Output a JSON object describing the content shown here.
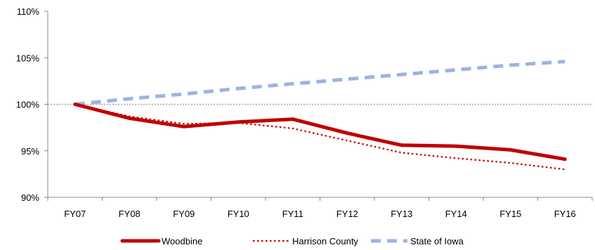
{
  "chart_data": {
    "type": "line",
    "categories": [
      "FY07",
      "FY08",
      "FY09",
      "FY10",
      "FY11",
      "FY12",
      "FY13",
      "FY14",
      "FY15",
      "FY16"
    ],
    "ylim": [
      90,
      110
    ],
    "yticks": [
      90,
      95,
      100,
      105,
      110
    ],
    "ytick_labels": [
      "90%",
      "95%",
      "100%",
      "105%",
      "110%"
    ],
    "reference_line": 100,
    "grid": false,
    "legend_position": "bottom",
    "series": [
      {
        "name": "Woodbine",
        "color": "#c00000",
        "line_style": "solid",
        "values": [
          100.0,
          98.5,
          97.6,
          98.1,
          98.4,
          96.9,
          95.6,
          95.5,
          95.1,
          94.1
        ]
      },
      {
        "name": "Harrison County",
        "color": "#c00000",
        "line_style": "dotted",
        "values": [
          100.0,
          98.7,
          97.9,
          98.0,
          97.4,
          96.1,
          94.8,
          94.2,
          93.7,
          93.0
        ]
      },
      {
        "name": "State of Iowa",
        "color": "#9db3e0",
        "line_style": "dashed",
        "values": [
          100.0,
          100.6,
          101.1,
          101.7,
          102.2,
          102.7,
          103.2,
          103.7,
          104.2,
          104.6
        ]
      }
    ]
  }
}
